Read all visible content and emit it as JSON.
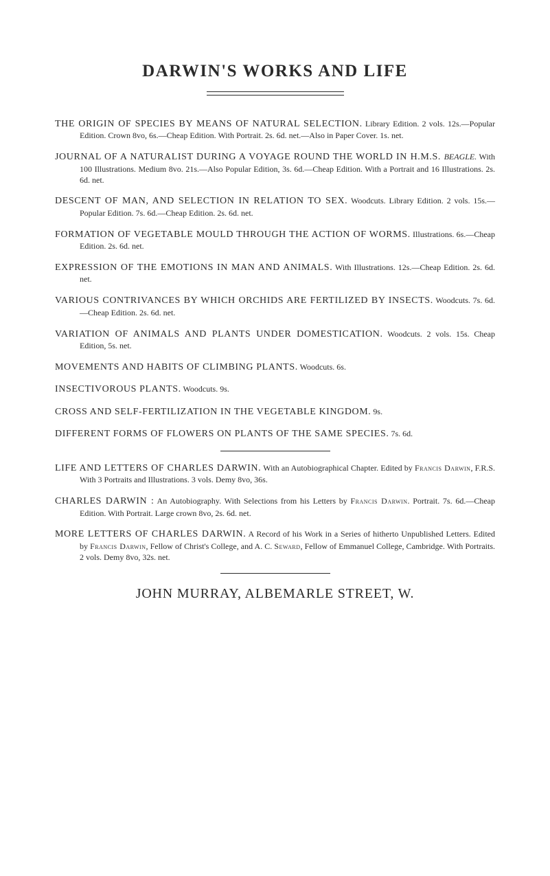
{
  "title_fontsize": 25,
  "body_fontsize": 14,
  "small_fontsize": 12,
  "publisher_fontsize": 20,
  "text_color": "#2b2b2b",
  "background_color": "#ffffff",
  "page_title": "DARWIN'S WORKS AND LIFE",
  "entries": [
    {
      "lead": "THE ORIGIN OF SPECIES BY MEANS OF NATURAL SELECTION.",
      "body": " Library Edition. 2 vols. 12s.—Popular Edition. Crown 8vo, 6s.—Cheap Edition. With Portrait. 2s. 6d. net.—Also in Paper Cover. 1s. net."
    },
    {
      "lead": "JOURNAL OF A NATURALIST DURING A VOYAGE ROUND THE WORLD IN H.M.S. ",
      "body_html": "<i>BEAGLE.</i> With 100 Illustrations. Medium 8vo. 21s.—Also Popular Edition, 3s. 6d.—Cheap Edition. With a Portrait and 16 Illustrations. 2s. 6d. net."
    },
    {
      "lead": "DESCENT OF MAN, AND SELECTION IN RELATION TO SEX.",
      "body": " Woodcuts. Library Edition. 2 vols. 15s.—Popular Edition. 7s. 6d.—Cheap Edition. 2s. 6d. net."
    },
    {
      "lead": "FORMATION OF VEGETABLE MOULD THROUGH THE ACTION OF WORMS.",
      "body": " Illustrations. 6s.—Cheap Edition. 2s. 6d. net."
    },
    {
      "lead": "EXPRESSION OF THE EMOTIONS IN MAN AND ANIMALS.",
      "body": " With Illustrations. 12s.—Cheap Edition. 2s. 6d. net."
    },
    {
      "lead": "VARIOUS CONTRIVANCES BY WHICH ORCHIDS ARE FERTILIZED BY INSECTS.",
      "body": " Woodcuts. 7s. 6d.—Cheap Edition. 2s. 6d. net."
    },
    {
      "lead": "VARIATION OF ANIMALS AND PLANTS UNDER DOMESTICATION.",
      "body": " Woodcuts. 2 vols. 15s. Cheap Edition, 5s. net."
    },
    {
      "lead": "MOVEMENTS AND HABITS OF CLIMBING PLANTS.",
      "body": " Woodcuts. 6s."
    },
    {
      "lead": "INSECTIVOROUS PLANTS.",
      "body": " Woodcuts. 9s."
    },
    {
      "lead": "CROSS AND SELF-FERTILIZATION IN THE VEGETABLE KINGDOM.",
      "body": " 9s."
    },
    {
      "lead": "DIFFERENT FORMS OF FLOWERS ON PLANTS OF THE SAME SPECIES.",
      "body": " 7s. 6d."
    }
  ],
  "life_entries": [
    {
      "lead": "LIFE AND LETTERS OF CHARLES DARWIN.",
      "body_html": " With an Autobiographical Chapter. Edited by <span class=\"sc\">Francis Darwin</span>, F.R.S. With 3 Portraits and Illustrations. 3 vols. Demy 8vo, 36s."
    },
    {
      "lead": "CHARLES DARWIN :",
      "body_html": " An Autobiography. With Selections from his Letters by <span class=\"sc\">Francis Darwin</span>. Portrait. 7s. 6d.—Cheap Edition. With Portrait. Large crown 8vo, 2s. 6d. net."
    },
    {
      "lead": "MORE LETTERS OF CHARLES DARWIN.",
      "body_html": " A Record of his Work in a Series of hitherto Unpublished Letters. Edited by <span class=\"sc\">Francis Darwin</span>, Fellow of Christ's College, and A. C. <span class=\"sc\">Seward</span>, Fellow of Emmanuel College, Cambridge. With Portraits. 2 vols. Demy 8vo, 32s. net."
    }
  ],
  "publisher": "JOHN MURRAY, ALBEMARLE STREET, W."
}
